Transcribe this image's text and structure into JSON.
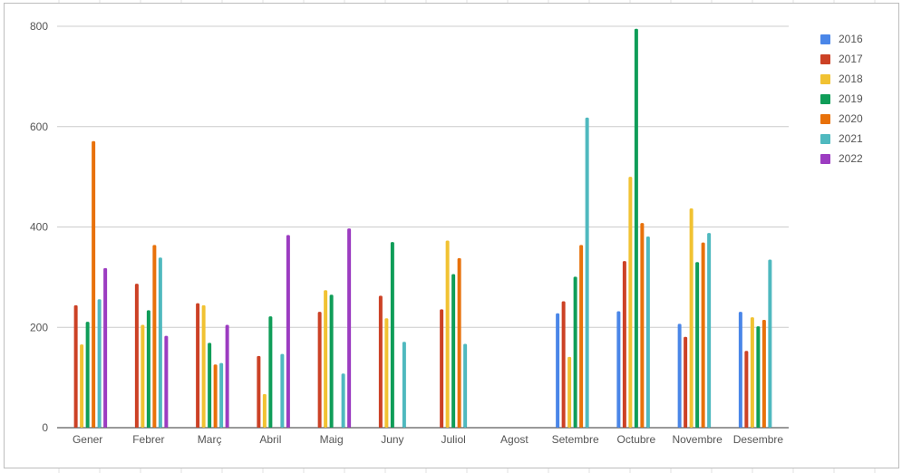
{
  "chart_data": {
    "type": "bar",
    "title": "",
    "xlabel": "",
    "ylabel": "",
    "ylim": [
      0,
      800
    ],
    "yticks": [
      "0",
      "200",
      "400",
      "600",
      "800"
    ],
    "grid": true,
    "legend_position": "right",
    "categories": [
      "Gener",
      "Febrer",
      "Març",
      "Abril",
      "Maig",
      "Juny",
      "Juliol",
      "Agost",
      "Setembre",
      "Octubre",
      "Novembre",
      "Desembre"
    ],
    "series": [
      {
        "name": "2016",
        "color": "#4a86e8",
        "values": [
          null,
          null,
          null,
          null,
          null,
          null,
          null,
          null,
          228,
          232,
          207,
          231
        ]
      },
      {
        "name": "2017",
        "color": "#cc4125",
        "values": [
          244,
          287,
          248,
          143,
          231,
          263,
          236,
          null,
          252,
          332,
          181,
          153
        ]
      },
      {
        "name": "2018",
        "color": "#f1c232",
        "values": [
          166,
          205,
          244,
          67,
          274,
          218,
          373,
          null,
          141,
          500,
          437,
          220
        ]
      },
      {
        "name": "2019",
        "color": "#0f9d58",
        "values": [
          211,
          234,
          169,
          222,
          265,
          370,
          306,
          null,
          301,
          795,
          330,
          202
        ]
      },
      {
        "name": "2020",
        "color": "#e8710a",
        "values": [
          571,
          364,
          126,
          null,
          null,
          null,
          338,
          null,
          364,
          408,
          369,
          215
        ]
      },
      {
        "name": "2021",
        "color": "#4fb9bf",
        "values": [
          256,
          339,
          129,
          147,
          108,
          171,
          167,
          null,
          618,
          381,
          388,
          335
        ]
      },
      {
        "name": "2022",
        "color": "#9c3cc1",
        "values": [
          318,
          183,
          205,
          384,
          397,
          null,
          null,
          null,
          null,
          null,
          null,
          null
        ]
      }
    ]
  }
}
